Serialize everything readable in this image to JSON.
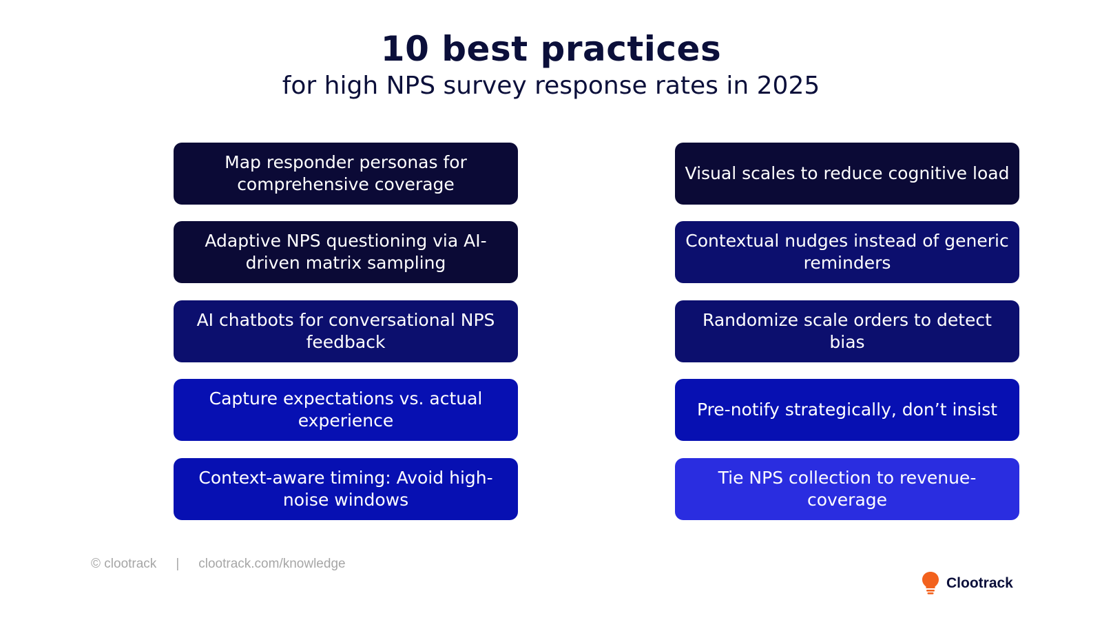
{
  "header": {
    "title": "10 best practices",
    "subtitle": "for high NPS survey response rates in 2025"
  },
  "practices": {
    "left": [
      {
        "text": "Map responder personas for comprehensive coverage",
        "color": "#0b0a36"
      },
      {
        "text": "Adaptive NPS questioning via AI-driven matrix sampling",
        "color": "#0b0a36"
      },
      {
        "text": "AI chatbots for conversational NPS feedback",
        "color": "#0c0f6e"
      },
      {
        "text": "Capture expectations vs. actual experience",
        "color": "#0710b2"
      },
      {
        "text": "Context-aware timing: Avoid high-noise windows",
        "color": "#0710b2"
      }
    ],
    "right": [
      {
        "text": "Visual scales to reduce cognitive load",
        "color": "#0b0a36"
      },
      {
        "text": "Contextual nudges instead of generic reminders",
        "color": "#0c0f6e"
      },
      {
        "text": "Randomize scale orders to detect bias",
        "color": "#0c0f6e"
      },
      {
        "text": "Pre-notify strategically, don’t insist",
        "color": "#0710b2"
      },
      {
        "text": "Tie NPS collection to revenue-coverage",
        "color": "#2a2de0"
      }
    ]
  },
  "footer": {
    "copyright": "© clootrack",
    "separator": "|",
    "url": "clootrack.com/knowledge"
  },
  "brand": {
    "name": "Clootrack",
    "logo_icon": "lightbulb-logo-icon",
    "logo_color": "#f2611d"
  }
}
